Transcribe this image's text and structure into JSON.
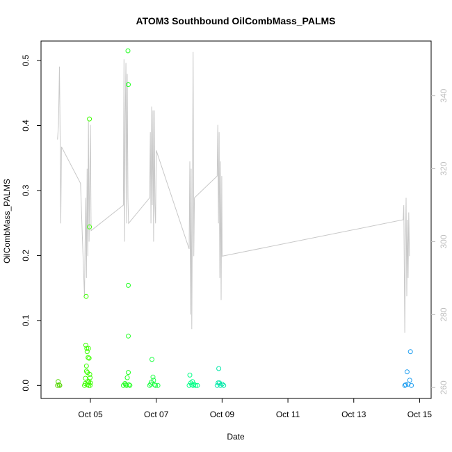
{
  "chart_data": {
    "type": "scatter",
    "title": "ATOM3 Southbound OilCombMass_PALMS",
    "xlabel": "Date",
    "ylabel": "OilCombMass_PALMS",
    "x_ticks": [
      "Oct 05",
      "Oct 07",
      "Oct 09",
      "Oct 11",
      "Oct 13",
      "Oct 15"
    ],
    "x_tick_days": [
      5,
      7,
      9,
      11,
      13,
      15
    ],
    "xlim": [
      3.5,
      15.35
    ],
    "ylim": [
      -0.02,
      0.53
    ],
    "y_ticks": [
      "0.0",
      "0.1",
      "0.2",
      "0.3",
      "0.4",
      "0.5"
    ],
    "y2lim": [
      257,
      355
    ],
    "y2_ticks": [
      "260",
      "280",
      "300",
      "320",
      "340"
    ],
    "grid": false,
    "legend": "none",
    "colors": {
      "axis": "#000000",
      "secondary_axis": "#bdbdbd",
      "trace": "#c8c8c8"
    },
    "scatter_series": [
      {
        "color": "#52d600",
        "points": [
          [
            4.0,
            0.0
          ],
          [
            4.02,
            0.006
          ],
          [
            4.05,
            0.001
          ],
          [
            4.07,
            0.0
          ]
        ]
      },
      {
        "color": "#3cff00",
        "points": [
          [
            4.82,
            0.0
          ],
          [
            4.84,
            0.003
          ],
          [
            4.85,
            0.011
          ],
          [
            4.86,
            0.062
          ],
          [
            4.87,
            0.137
          ],
          [
            4.88,
            0.022
          ],
          [
            4.89,
            0.057
          ],
          [
            4.9,
            0.052
          ],
          [
            4.91,
            0.02
          ],
          [
            4.92,
            0.006
          ],
          [
            4.93,
            0.043
          ],
          [
            4.94,
            0.057
          ],
          [
            4.95,
            0.005
          ],
          [
            4.96,
            0.042
          ],
          [
            4.97,
            0.41
          ],
          [
            4.97,
            0.244
          ],
          [
            4.98,
            0.017
          ],
          [
            4.99,
            0.012
          ],
          [
            4.99,
            0.0
          ],
          [
            5.0,
            0.004
          ],
          [
            4.88,
            0.03
          ],
          [
            4.9,
            0.001
          ],
          [
            4.95,
            0.0
          ]
        ]
      },
      {
        "color": "#22ff22",
        "points": [
          [
            6.0,
            0.0
          ],
          [
            6.05,
            0.003
          ],
          [
            6.07,
            0.001
          ],
          [
            6.1,
            0.0
          ],
          [
            6.12,
            0.012
          ],
          [
            6.14,
            0.515
          ],
          [
            6.15,
            0.463
          ],
          [
            6.15,
            0.154
          ],
          [
            6.15,
            0.076
          ],
          [
            6.15,
            0.02
          ],
          [
            6.17,
            0.001
          ],
          [
            6.2,
            0.0
          ]
        ]
      },
      {
        "color": "#1fff45",
        "points": [
          [
            6.8,
            0.0
          ],
          [
            6.83,
            0.002
          ],
          [
            6.85,
            0.005
          ],
          [
            6.87,
            0.04
          ],
          [
            6.9,
            0.013
          ],
          [
            6.92,
            0.008
          ],
          [
            6.95,
            0.001
          ],
          [
            6.98,
            0.0
          ],
          [
            7.05,
            0.0
          ]
        ]
      },
      {
        "color": "#00ff86",
        "points": [
          [
            8.0,
            0.0
          ],
          [
            8.02,
            0.016
          ],
          [
            8.05,
            0.004
          ],
          [
            8.08,
            0.001
          ],
          [
            8.1,
            0.006
          ],
          [
            8.12,
            0.0
          ],
          [
            8.15,
            0.002
          ],
          [
            8.2,
            0.0
          ],
          [
            8.25,
            0.0
          ]
        ]
      },
      {
        "color": "#00e8a8",
        "points": [
          [
            8.85,
            0.0
          ],
          [
            8.88,
            0.004
          ],
          [
            8.9,
            0.026
          ],
          [
            8.92,
            0.004
          ],
          [
            8.95,
            0.0
          ],
          [
            9.0,
            0.002
          ],
          [
            9.05,
            0.0
          ]
        ]
      },
      {
        "color": "#1a9cf0",
        "points": [
          [
            14.55,
            0.0
          ],
          [
            14.58,
            0.001
          ],
          [
            14.62,
            0.021
          ],
          [
            14.65,
            0.002
          ],
          [
            14.7,
            0.008
          ],
          [
            14.72,
            0.052
          ],
          [
            14.75,
            0.0
          ]
        ]
      }
    ],
    "trace_series": {
      "axis": "secondary",
      "points": [
        [
          4.0,
          328
        ],
        [
          4.03,
          332
        ],
        [
          4.06,
          348
        ],
        [
          4.08,
          328
        ],
        [
          4.1,
          305
        ],
        [
          4.12,
          326
        ],
        [
          4.7,
          316
        ],
        [
          4.8,
          290
        ],
        [
          4.82,
          285
        ],
        [
          4.84,
          300
        ],
        [
          4.86,
          312
        ],
        [
          4.88,
          290
        ],
        [
          4.9,
          320
        ],
        [
          4.92,
          296
        ],
        [
          4.94,
          333
        ],
        [
          4.96,
          300
        ],
        [
          4.98,
          318
        ],
        [
          5.0,
          332
        ],
        [
          5.02,
          303
        ],
        [
          6.0,
          310
        ],
        [
          6.02,
          350
        ],
        [
          6.04,
          300
        ],
        [
          6.06,
          335
        ],
        [
          6.08,
          349
        ],
        [
          6.1,
          305
        ],
        [
          6.12,
          346
        ],
        [
          6.14,
          312
        ],
        [
          6.16,
          305
        ],
        [
          6.8,
          312
        ],
        [
          6.82,
          330
        ],
        [
          6.84,
          305
        ],
        [
          6.86,
          337
        ],
        [
          6.88,
          310
        ],
        [
          6.9,
          336
        ],
        [
          6.92,
          300
        ],
        [
          6.94,
          336
        ],
        [
          6.96,
          310
        ],
        [
          6.98,
          305
        ],
        [
          7.0,
          325
        ],
        [
          8.0,
          298
        ],
        [
          8.02,
          322
        ],
        [
          8.04,
          280
        ],
        [
          8.06,
          320
        ],
        [
          8.08,
          276
        ],
        [
          8.1,
          315
        ],
        [
          8.12,
          352
        ],
        [
          8.14,
          296
        ],
        [
          8.16,
          312
        ],
        [
          8.85,
          318
        ],
        [
          8.87,
          332
        ],
        [
          8.89,
          305
        ],
        [
          8.91,
          330
        ],
        [
          8.93,
          290
        ],
        [
          8.95,
          322
        ],
        [
          8.97,
          284
        ],
        [
          8.99,
          318
        ],
        [
          9.0,
          296
        ],
        [
          14.5,
          306
        ],
        [
          14.52,
          310
        ],
        [
          14.55,
          275
        ],
        [
          14.57,
          300
        ],
        [
          14.59,
          312
        ],
        [
          14.61,
          285
        ],
        [
          14.63,
          306
        ],
        [
          14.65,
          290
        ],
        [
          14.67,
          308
        ],
        [
          14.69,
          296
        ]
      ]
    }
  }
}
